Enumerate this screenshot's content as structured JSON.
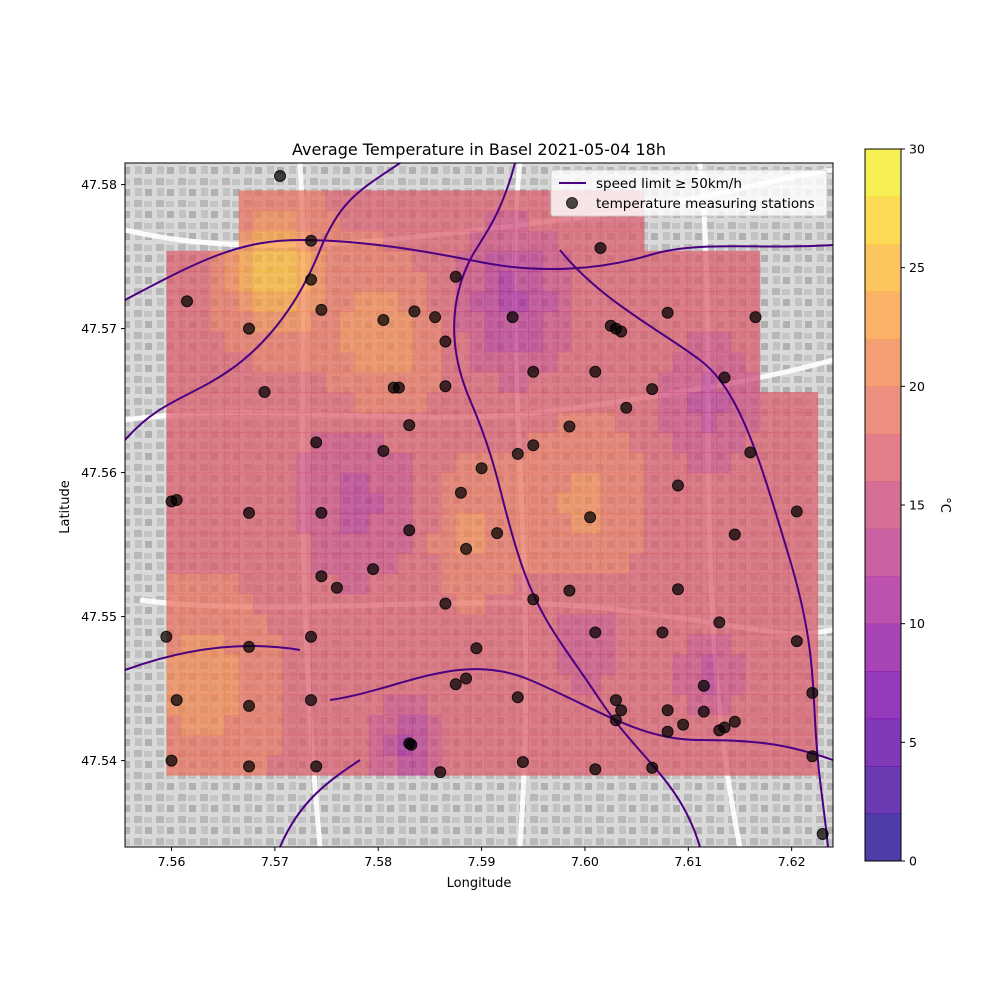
{
  "figure": {
    "title": "Average Temperature in Basel 2021-05-04 18h",
    "xlabel": "Longitude",
    "ylabel": "Latitude",
    "colorbar_label": "°C"
  },
  "legend": {
    "placement": "top-right",
    "entries": [
      {
        "label": "speed limit ≥ 50km/h",
        "kind": "line",
        "color": "#4b0082"
      },
      {
        "label": "temperature measuring stations",
        "kind": "marker",
        "color": "#000000"
      }
    ]
  },
  "chart_data": {
    "type": "heatmap",
    "title": "Average Temperature in Basel 2021-05-04 18h",
    "xlabel": "Longitude",
    "ylabel": "Latitude",
    "xlim": [
      7.5555,
      7.624
    ],
    "ylim": [
      47.534,
      47.5815
    ],
    "x_ticks": [
      "7.56",
      "7.57",
      "7.58",
      "7.59",
      "7.60",
      "7.61",
      "7.62"
    ],
    "y_ticks": [
      "47.54",
      "47.55",
      "47.56",
      "47.57",
      "47.58"
    ],
    "x_tick_values": [
      7.56,
      7.57,
      7.58,
      7.59,
      7.6,
      7.61,
      7.62
    ],
    "y_tick_values": [
      47.54,
      47.55,
      47.56,
      47.57,
      47.58
    ],
    "colorbar": {
      "label": "°C",
      "min": 0,
      "max": 30,
      "ticks": [
        "0",
        "5",
        "10",
        "15",
        "20",
        "25",
        "30"
      ],
      "tick_values": [
        0,
        5,
        10,
        15,
        20,
        25,
        30
      ],
      "colormap": "plasma",
      "levels": 15
    },
    "stations": [
      [
        7.5705,
        47.5806
      ],
      [
        7.5735,
        47.5761
      ],
      [
        7.5735,
        47.5734
      ],
      [
        7.5875,
        47.5736
      ],
      [
        7.6015,
        47.5756
      ],
      [
        7.5615,
        47.5719
      ],
      [
        7.5745,
        47.5713
      ],
      [
        7.5805,
        47.5706
      ],
      [
        7.5835,
        47.5712
      ],
      [
        7.5855,
        47.5708
      ],
      [
        7.593,
        47.5708
      ],
      [
        7.608,
        47.5711
      ],
      [
        7.6165,
        47.5708
      ],
      [
        7.6025,
        47.5702
      ],
      [
        7.6035,
        47.5698
      ],
      [
        7.603,
        47.57
      ],
      [
        7.5675,
        47.57
      ],
      [
        7.5865,
        47.5691
      ],
      [
        7.595,
        47.567
      ],
      [
        7.601,
        47.567
      ],
      [
        7.6135,
        47.5666
      ],
      [
        7.569,
        47.5656
      ],
      [
        7.5815,
        47.5659
      ],
      [
        7.5865,
        47.566
      ],
      [
        7.6065,
        47.5658
      ],
      [
        7.604,
        47.5645
      ],
      [
        7.583,
        47.5633
      ],
      [
        7.5985,
        47.5632
      ],
      [
        7.574,
        47.5621
      ],
      [
        7.5805,
        47.5615
      ],
      [
        7.5935,
        47.5613
      ],
      [
        7.595,
        47.5619
      ],
      [
        7.616,
        47.5614
      ],
      [
        7.59,
        47.5603
      ],
      [
        7.588,
        47.5586
      ],
      [
        7.609,
        47.5591
      ],
      [
        7.56,
        47.558
      ],
      [
        7.5605,
        47.5581
      ],
      [
        7.5675,
        47.5572
      ],
      [
        7.5745,
        47.5572
      ],
      [
        7.6205,
        47.5573
      ],
      [
        7.6005,
        47.5569
      ],
      [
        7.583,
        47.556
      ],
      [
        7.5915,
        47.5558
      ],
      [
        7.6145,
        47.5557
      ],
      [
        7.5885,
        47.5547
      ],
      [
        7.5795,
        47.5533
      ],
      [
        7.5745,
        47.5528
      ],
      [
        7.576,
        47.552
      ],
      [
        7.5985,
        47.5518
      ],
      [
        7.609,
        47.5519
      ],
      [
        7.595,
        47.5512
      ],
      [
        7.5865,
        47.5509
      ],
      [
        7.613,
        47.5496
      ],
      [
        7.5595,
        47.5486
      ],
      [
        7.5735,
        47.5486
      ],
      [
        7.601,
        47.5489
      ],
      [
        7.6075,
        47.5489
      ],
      [
        7.6205,
        47.5483
      ],
      [
        7.5675,
        47.5479
      ],
      [
        7.5895,
        47.5478
      ],
      [
        7.5885,
        47.5457
      ],
      [
        7.5875,
        47.5453
      ],
      [
        7.6115,
        47.5452
      ],
      [
        7.622,
        47.5447
      ],
      [
        7.5605,
        47.5442
      ],
      [
        7.5735,
        47.5442
      ],
      [
        7.5935,
        47.5444
      ],
      [
        7.603,
        47.5442
      ],
      [
        7.5675,
        47.5438
      ],
      [
        7.6035,
        47.5435
      ],
      [
        7.608,
        47.5435
      ],
      [
        7.6115,
        47.5434
      ],
      [
        7.603,
        47.5428
      ],
      [
        7.6095,
        47.5425
      ],
      [
        7.6145,
        47.5427
      ],
      [
        7.6135,
        47.5423
      ],
      [
        7.613,
        47.5421
      ],
      [
        7.608,
        47.542
      ],
      [
        7.583,
        47.5412
      ],
      [
        7.5832,
        47.5411
      ],
      [
        7.582,
        47.5659
      ],
      [
        7.622,
        47.5403
      ],
      [
        7.56,
        47.54
      ],
      [
        7.594,
        47.5399
      ],
      [
        7.5675,
        47.5396
      ],
      [
        7.574,
        47.5396
      ],
      [
        7.601,
        47.5394
      ],
      [
        7.6065,
        47.5395
      ],
      [
        7.586,
        47.5392
      ],
      [
        7.623,
        47.5349
      ]
    ]
  }
}
